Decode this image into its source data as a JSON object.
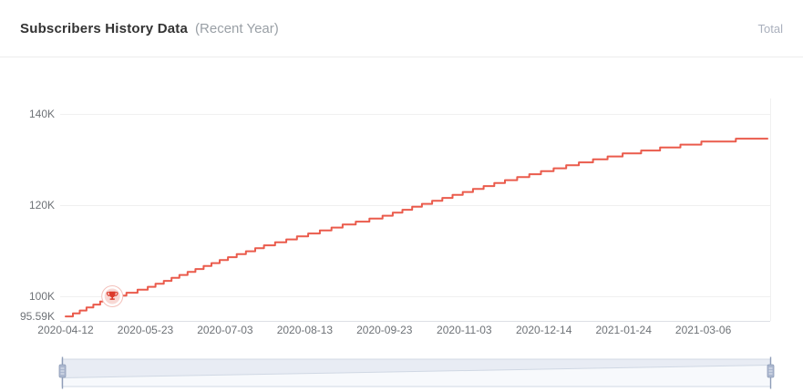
{
  "header": {
    "title": "Subscribers History Data",
    "subtitle": "(Recent Year)",
    "right_label": "Total"
  },
  "colors": {
    "line": "#ea5b4c",
    "grid": "#f0f0f0",
    "axis_line": "#dde0e6",
    "axis_label": "#6e7277",
    "milestone": "#dc3a2b",
    "milestone_bg": "#f8d8d4",
    "milestone_ring": "#f3c0ba",
    "slider_track": "#e8ecf4",
    "slider_shadow": "#f7f9fc",
    "slider_border": "#d2d9e5",
    "slider_shadow_line": "#d0d8e4",
    "slider_handle": "#abb7cf",
    "slider_handle_line": "#8f9db8",
    "slider_handle_stripe": "#e6eaf2"
  },
  "chart_data": {
    "type": "line",
    "title": "Subscribers History Data (Recent Year)",
    "series_name": "Total",
    "legend_position": "top-right",
    "grid": true,
    "x_axis": {
      "ticks": [
        "2020-04-12",
        "2020-05-23",
        "2020-07-03",
        "2020-08-13",
        "2020-09-23",
        "2020-11-03",
        "2020-12-14",
        "2021-01-24",
        "2021-03-06"
      ],
      "tick_interval_days": 41,
      "total_days": 361
    },
    "y_axis": {
      "ticks": [
        {
          "label": "140K",
          "value": 140000,
          "grid": true
        },
        {
          "label": "120K",
          "value": 120000,
          "grid": true
        },
        {
          "label": "100K",
          "value": 100000,
          "grid": true
        },
        {
          "label": "95.59K",
          "value": 95590,
          "grid": false
        }
      ],
      "min": 95590,
      "max": 143000
    },
    "step_quantum": 650,
    "points": [
      {
        "day": 0,
        "value": 95590
      },
      {
        "day": 10,
        "value": 97400
      },
      {
        "day": 20,
        "value": 99300
      },
      {
        "day": 24,
        "value": 100000
      },
      {
        "day": 41,
        "value": 101900
      },
      {
        "day": 61,
        "value": 105100
      },
      {
        "day": 82,
        "value": 108400
      },
      {
        "day": 102,
        "value": 111200
      },
      {
        "day": 123,
        "value": 113600
      },
      {
        "day": 143,
        "value": 115800
      },
      {
        "day": 164,
        "value": 117800
      },
      {
        "day": 184,
        "value": 120400
      },
      {
        "day": 205,
        "value": 123000
      },
      {
        "day": 225,
        "value": 125400
      },
      {
        "day": 246,
        "value": 127600
      },
      {
        "day": 266,
        "value": 129600
      },
      {
        "day": 287,
        "value": 131400
      },
      {
        "day": 308,
        "value": 132800
      },
      {
        "day": 328,
        "value": 134000
      },
      {
        "day": 345,
        "value": 134600
      },
      {
        "day": 361,
        "value": 135000
      }
    ],
    "start": {
      "label": "95.59K",
      "value": 95590
    },
    "end": {
      "value": 135000
    },
    "milestone": {
      "day": 24,
      "value": 100000,
      "icon": "trophy-icon"
    }
  },
  "slider": {
    "kind": "datazoom-range-slider",
    "selected_start_pct": 0,
    "selected_end_pct": 100
  }
}
